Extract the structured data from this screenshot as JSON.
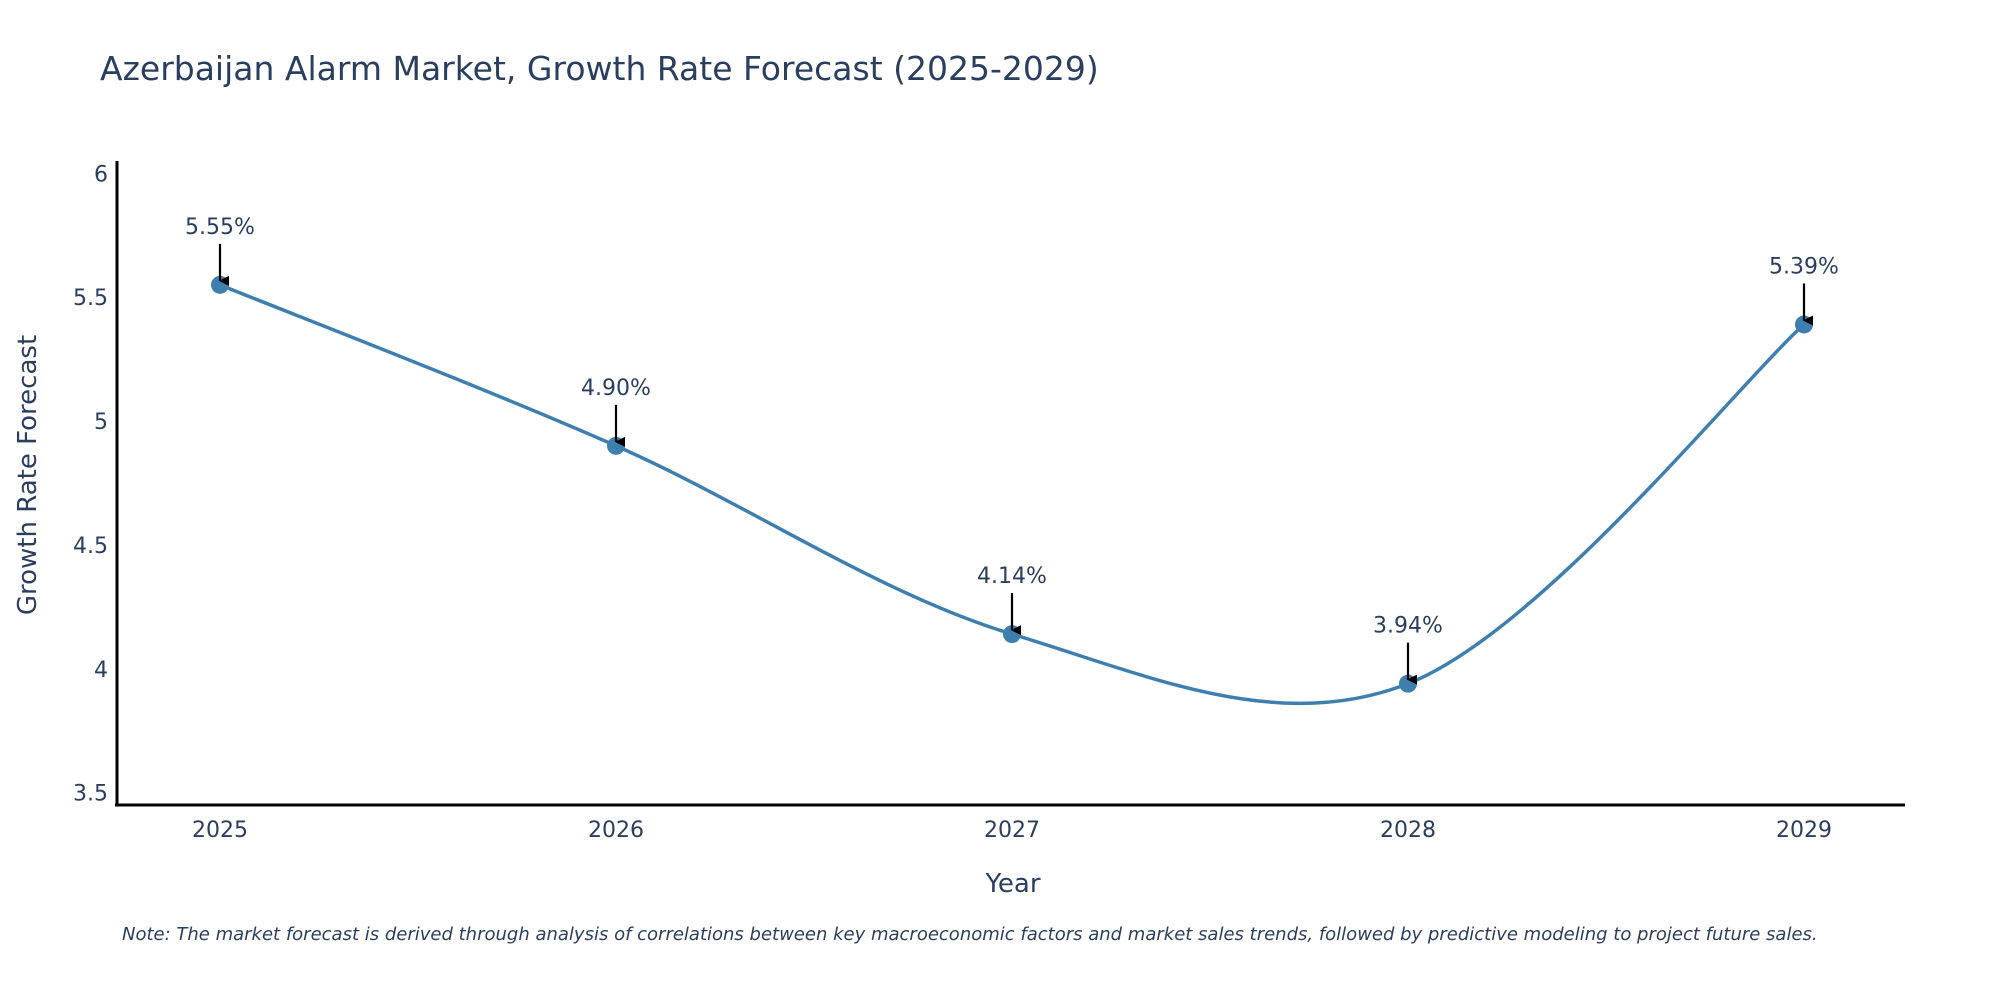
{
  "chart_data": {
    "type": "line",
    "title": "Azerbaijan Alarm Market, Growth Rate Forecast (2025-2029)",
    "xlabel": "Year",
    "ylabel": "Growth Rate Forecast",
    "x": [
      "2025",
      "2026",
      "2027",
      "2028",
      "2029"
    ],
    "series": [
      {
        "name": "Growth Rate Forecast",
        "values": [
          5.55,
          4.9,
          4.14,
          3.94,
          5.39
        ],
        "labels": [
          "5.55%",
          "4.90%",
          "4.14%",
          "3.94%",
          "5.39%"
        ],
        "color": "#3f7fb0"
      }
    ],
    "ylim": [
      3.45,
      6.05
    ],
    "yticks": [
      3.5,
      4,
      4.5,
      5,
      5.5,
      6
    ],
    "ytick_labels": [
      "3.5",
      "4",
      "4.5",
      "5",
      "5.5",
      "6"
    ],
    "grid": false,
    "line_shape": "spline",
    "annotation_arrows": true,
    "note": "Note: The market forecast is derived through analysis of correlations between key macroeconomic factors and market sales trends, followed by predictive modeling to project future sales."
  }
}
